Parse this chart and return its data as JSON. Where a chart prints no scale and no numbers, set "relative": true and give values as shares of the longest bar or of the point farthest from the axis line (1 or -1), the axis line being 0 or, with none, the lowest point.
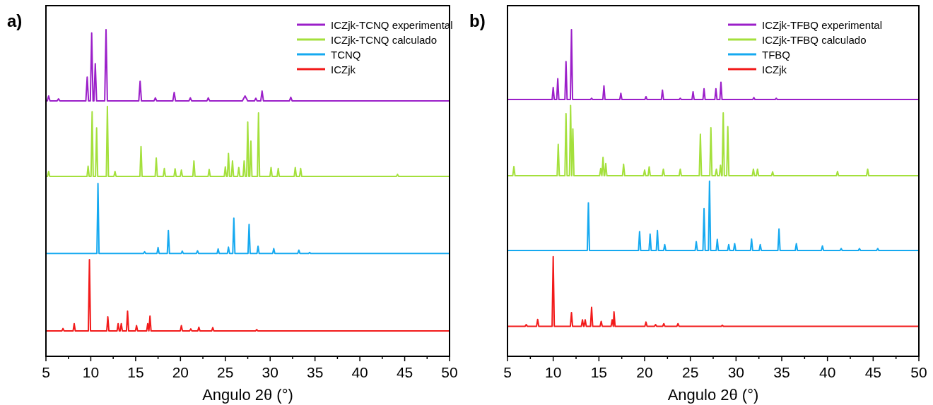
{
  "chart_data": [
    {
      "type": "line",
      "title": "a)",
      "xlabel": "Angulo 2θ (°)",
      "relative": true,
      "tick_labels": "x",
      "legend": "top right",
      "xlim": [
        5,
        50
      ],
      "xticks": [
        5,
        {
          "value": 7.5,
          "label": null
        },
        10,
        {
          "value": 12.5,
          "label": null
        },
        15,
        {
          "value": 17.5,
          "label": null
        },
        20,
        {
          "value": 22.5,
          "label": null
        },
        25,
        {
          "value": 27.5,
          "label": null
        },
        30,
        {
          "value": 32.5,
          "label": null
        },
        35,
        {
          "value": 37.5,
          "label": null
        },
        40,
        {
          "value": 42.5,
          "label": null
        },
        45,
        {
          "value": 47.5,
          "label": null
        },
        50
      ],
      "series": [
        {
          "name": "ICZjk-TCNQ experimental",
          "color": "#9b1fc9",
          "x": [
            5,
            5.15,
            5.3,
            5.45,
            6.25,
            6.4,
            6.55,
            9.45,
            9.6,
            9.75,
            9.95,
            10.1,
            10.25,
            10.35,
            10.5,
            10.65,
            11.55,
            11.7,
            11.85,
            15.35,
            15.5,
            15.65,
            17.05,
            17.2,
            17.35,
            19.15,
            19.3,
            19.45,
            20.95,
            21.1,
            21.25,
            22.95,
            23.1,
            23.25,
            26.9,
            27.2,
            27.5,
            28.25,
            28.4,
            28.55,
            28.95,
            29.1,
            29.25,
            32.15,
            32.3,
            32.45,
            50
          ],
          "values": [
            0.782,
            0.782,
            0.797,
            0.782,
            0.782,
            0.788,
            0.782,
            0.782,
            0.855,
            0.782,
            0.782,
            0.99,
            0.782,
            0.782,
            0.896,
            0.782,
            0.782,
            1,
            0.782,
            0.782,
            0.842,
            0.782,
            0.782,
            0.791,
            0.782,
            0.782,
            0.808,
            0.782,
            0.782,
            0.791,
            0.782,
            0.782,
            0.791,
            0.782,
            0.782,
            0.797,
            0.782,
            0.782,
            0.79,
            0.782,
            0.782,
            0.812,
            0.782,
            0.782,
            0.793,
            0.782,
            0.782
          ]
        },
        {
          "name": "ICZjk-TCNQ calculado",
          "color": "#a4e03c",
          "x": [
            5,
            5.18,
            5.3,
            5.42,
            9.58,
            9.7,
            9.82,
            10.03,
            10.15,
            10.27,
            10.53,
            10.65,
            10.77,
            11.73,
            11.85,
            11.97,
            12.58,
            12.7,
            12.82,
            15.48,
            15.6,
            15.72,
            17.18,
            17.3,
            17.42,
            18.08,
            18.2,
            18.32,
            19.28,
            19.4,
            19.52,
            19.98,
            20.1,
            20.22,
            21.38,
            21.5,
            21.62,
            23.08,
            23.2,
            23.32,
            24.88,
            25,
            25.12,
            25.23,
            25.35,
            25.47,
            25.68,
            25.8,
            25.92,
            26.38,
            26.5,
            26.62,
            26.98,
            27.1,
            27.22,
            27.38,
            27.5,
            27.62,
            27.73,
            27.85,
            27.97,
            28.58,
            28.7,
            28.82,
            29.98,
            30.1,
            30.22,
            30.78,
            30.9,
            31.02,
            32.68,
            32.8,
            32.92,
            33.28,
            33.4,
            33.52,
            44.08,
            44.2,
            44.32,
            50
          ],
          "values": [
            0.551,
            0.551,
            0.566,
            0.551,
            0.551,
            0.582,
            0.551,
            0.551,
            0.749,
            0.551,
            0.551,
            0.699,
            0.551,
            0.551,
            0.765,
            0.551,
            0.551,
            0.566,
            0.551,
            0.551,
            0.642,
            0.551,
            0.551,
            0.607,
            0.551,
            0.551,
            0.575,
            0.551,
            0.551,
            0.574,
            0.551,
            0.551,
            0.57,
            0.551,
            0.551,
            0.598,
            0.551,
            0.551,
            0.572,
            0.551,
            0.551,
            0.58,
            0.551,
            0.551,
            0.621,
            0.551,
            0.551,
            0.598,
            0.551,
            0.551,
            0.578,
            0.551,
            0.551,
            0.598,
            0.551,
            0.551,
            0.717,
            0.551,
            0.551,
            0.659,
            0.551,
            0.551,
            0.745,
            0.551,
            0.551,
            0.578,
            0.551,
            0.551,
            0.575,
            0.551,
            0.551,
            0.578,
            0.551,
            0.551,
            0.575,
            0.551,
            0.551,
            0.557,
            0.551,
            0.551
          ]
        },
        {
          "name": "TCNQ",
          "color": "#15a9f0",
          "x": [
            5,
            10.68,
            10.8,
            10.92,
            15.88,
            16,
            16.12,
            17.38,
            17.5,
            17.62,
            18.53,
            18.65,
            18.77,
            20.08,
            20.2,
            20.32,
            21.78,
            21.9,
            22.02,
            24.08,
            24.2,
            24.32,
            25.23,
            25.35,
            25.47,
            25.83,
            25.95,
            26.07,
            27.53,
            27.65,
            27.77,
            28.53,
            28.65,
            28.77,
            30.28,
            30.4,
            30.52,
            33.08,
            33.2,
            33.32,
            34.28,
            34.4,
            34.52,
            50
          ],
          "values": [
            0.315,
            0.315,
            0.529,
            0.315,
            0.315,
            0.32,
            0.315,
            0.315,
            0.333,
            0.315,
            0.315,
            0.385,
            0.315,
            0.315,
            0.322,
            0.315,
            0.315,
            0.323,
            0.315,
            0.315,
            0.329,
            0.315,
            0.315,
            0.334,
            0.315,
            0.315,
            0.423,
            0.315,
            0.315,
            0.404,
            0.315,
            0.315,
            0.337,
            0.315,
            0.315,
            0.33,
            0.315,
            0.315,
            0.325,
            0.315,
            0.315,
            0.318,
            0.315,
            0.315
          ]
        },
        {
          "name": "ICZjk",
          "color": "#f21a1a",
          "x": [
            5,
            6.78,
            6.9,
            7.02,
            8.03,
            8.15,
            8.27,
            9.73,
            9.85,
            9.97,
            11.78,
            11.9,
            12.02,
            12.93,
            13.05,
            13.17,
            13.28,
            13.4,
            13.52,
            13.98,
            14.1,
            14.22,
            14.98,
            15.1,
            15.22,
            16.23,
            16.35,
            16.47,
            16.48,
            16.6,
            16.72,
            19.98,
            20.1,
            20.22,
            21.03,
            21.15,
            21.27,
            21.93,
            22.05,
            22.17,
            23.48,
            23.6,
            23.72,
            28.38,
            28.5,
            28.62,
            50
          ],
          "values": [
            0.078,
            0.078,
            0.085,
            0.078,
            0.078,
            0.1,
            0.078,
            0.078,
            0.296,
            0.078,
            0.078,
            0.121,
            0.078,
            0.078,
            0.1,
            0.078,
            0.078,
            0.1,
            0.078,
            0.078,
            0.138,
            0.078,
            0.078,
            0.094,
            0.078,
            0.078,
            0.1,
            0.078,
            0.078,
            0.123,
            0.078,
            0.078,
            0.094,
            0.078,
            0.078,
            0.084,
            0.078,
            0.078,
            0.089,
            0.078,
            0.078,
            0.088,
            0.078,
            0.078,
            0.082,
            0.078,
            0.078
          ]
        }
      ]
    },
    {
      "type": "line",
      "title": "b)",
      "xlabel": "Angulo 2θ (°)",
      "relative": true,
      "tick_labels": "x",
      "legend": "top right",
      "xlim": [
        5,
        50
      ],
      "xticks": [
        5,
        {
          "value": 7.5,
          "label": null
        },
        10,
        {
          "value": 12.5,
          "label": null
        },
        15,
        {
          "value": 17.5,
          "label": null
        },
        20,
        {
          "value": 22.5,
          "label": null
        },
        25,
        {
          "value": 27.5,
          "label": null
        },
        30,
        {
          "value": 32.5,
          "label": null
        },
        35,
        {
          "value": 37.5,
          "label": null
        },
        40,
        {
          "value": 42.5,
          "label": null
        },
        45,
        {
          "value": 47.5,
          "label": null
        },
        50
      ],
      "series": [
        {
          "name": "ICZjk-TFBQ experimental",
          "color": "#9b1fc9",
          "x": [
            5,
            9.88,
            10,
            10.12,
            10.38,
            10.5,
            10.62,
            11.28,
            11.4,
            11.52,
            11.88,
            12,
            12.12,
            14.08,
            14.2,
            14.32,
            15.43,
            15.55,
            15.67,
            17.28,
            17.4,
            17.52,
            20.03,
            20.15,
            20.27,
            21.83,
            21.95,
            22.07,
            23.78,
            23.9,
            24.02,
            25.18,
            25.3,
            25.42,
            26.38,
            26.5,
            26.62,
            27.68,
            27.8,
            27.92,
            28.23,
            28.35,
            28.47,
            31.83,
            31.95,
            32.07,
            34.28,
            34.4,
            34.52,
            50
          ],
          "values": [
            0.786,
            0.786,
            0.823,
            0.786,
            0.786,
            0.85,
            0.786,
            0.786,
            0.902,
            0.786,
            0.786,
            1,
            0.786,
            0.786,
            0.79,
            0.786,
            0.786,
            0.828,
            0.786,
            0.786,
            0.805,
            0.786,
            0.786,
            0.795,
            0.786,
            0.786,
            0.815,
            0.786,
            0.786,
            0.79,
            0.786,
            0.786,
            0.81,
            0.786,
            0.786,
            0.819,
            0.786,
            0.786,
            0.819,
            0.786,
            0.786,
            0.839,
            0.786,
            0.786,
            0.792,
            0.786,
            0.786,
            0.79,
            0.786,
            0.786
          ]
        },
        {
          "name": "ICZjk-TFBQ calculado",
          "color": "#a4e03c",
          "x": [
            5,
            5.58,
            5.7,
            5.82,
            10.43,
            10.55,
            10.67,
            11.28,
            11.4,
            11.52,
            11.78,
            11.9,
            12.02,
            12.03,
            12.15,
            12.27,
            15.08,
            15.2,
            15.32,
            15.33,
            15.45,
            15.57,
            15.63,
            15.75,
            15.87,
            17.58,
            17.7,
            17.82,
            19.88,
            20,
            20.12,
            20.38,
            20.5,
            20.62,
            21.93,
            22.05,
            22.17,
            23.78,
            23.9,
            24.02,
            25.98,
            26.1,
            26.22,
            27.13,
            27.25,
            27.37,
            27.73,
            27.85,
            27.97,
            28.18,
            28.3,
            28.42,
            28.48,
            28.6,
            28.72,
            28.98,
            29.1,
            29.22,
            31.78,
            31.9,
            32.02,
            32.23,
            32.35,
            32.47,
            33.88,
            34,
            34.12,
            40.98,
            41.1,
            41.22,
            44.28,
            44.4,
            44.52,
            50
          ],
          "values": [
            0.553,
            0.553,
            0.581,
            0.553,
            0.553,
            0.649,
            0.553,
            0.553,
            0.743,
            0.553,
            0.553,
            0.768,
            0.553,
            0.553,
            0.696,
            0.553,
            0.553,
            0.575,
            0.553,
            0.553,
            0.609,
            0.553,
            0.553,
            0.59,
            0.553,
            0.553,
            0.588,
            0.553,
            0.553,
            0.57,
            0.553,
            0.553,
            0.58,
            0.553,
            0.553,
            0.573,
            0.553,
            0.553,
            0.573,
            0.553,
            0.553,
            0.68,
            0.553,
            0.553,
            0.7,
            0.553,
            0.553,
            0.573,
            0.553,
            0.553,
            0.585,
            0.553,
            0.553,
            0.745,
            0.553,
            0.553,
            0.703,
            0.553,
            0.553,
            0.573,
            0.553,
            0.553,
            0.573,
            0.553,
            0.553,
            0.565,
            0.553,
            0.553,
            0.566,
            0.553,
            0.553,
            0.573,
            0.553,
            0.553
          ]
        },
        {
          "name": "TFBQ",
          "color": "#15a9f0",
          "x": [
            5,
            13.73,
            13.85,
            13.97,
            19.33,
            19.45,
            19.57,
            20.48,
            20.6,
            20.72,
            21.28,
            21.4,
            21.52,
            22.08,
            22.2,
            22.32,
            25.53,
            25.65,
            25.77,
            26.38,
            26.5,
            26.62,
            26.98,
            27.1,
            27.22,
            27.83,
            27.95,
            28.07,
            29.08,
            29.2,
            29.32,
            29.73,
            29.85,
            29.97,
            31.58,
            31.7,
            31.82,
            32.53,
            32.65,
            32.77,
            34.58,
            34.7,
            34.82,
            36.48,
            36.6,
            36.72,
            39.33,
            39.45,
            39.57,
            41.38,
            41.5,
            41.62,
            43.38,
            43.5,
            43.62,
            45.38,
            45.5,
            45.62,
            50
          ],
          "values": [
            0.324,
            0.324,
            0.47,
            0.324,
            0.324,
            0.382,
            0.324,
            0.324,
            0.374,
            0.324,
            0.324,
            0.385,
            0.324,
            0.324,
            0.342,
            0.324,
            0.324,
            0.351,
            0.324,
            0.324,
            0.452,
            0.324,
            0.324,
            0.536,
            0.324,
            0.324,
            0.358,
            0.324,
            0.324,
            0.342,
            0.324,
            0.324,
            0.345,
            0.324,
            0.324,
            0.359,
            0.324,
            0.324,
            0.342,
            0.324,
            0.324,
            0.39,
            0.324,
            0.324,
            0.345,
            0.324,
            0.324,
            0.338,
            0.324,
            0.324,
            0.33,
            0.324,
            0.324,
            0.33,
            0.324,
            0.324,
            0.33,
            0.324,
            0.324
          ]
        },
        {
          "name": "ICZjk",
          "color": "#f21a1a",
          "x": [
            5,
            6.93,
            7.05,
            7.17,
            8.18,
            8.3,
            8.42,
            9.88,
            10,
            10.12,
            11.88,
            12,
            12.12,
            13.08,
            13.2,
            13.32,
            13.38,
            13.5,
            13.62,
            14.08,
            14.2,
            14.32,
            15.13,
            15.25,
            15.37,
            16.33,
            16.45,
            16.57,
            16.58,
            16.65,
            16.77,
            20.03,
            20.15,
            20.27,
            21.08,
            21.2,
            21.32,
            21.98,
            22.1,
            22.22,
            23.53,
            23.65,
            23.77,
            28.38,
            28.5,
            28.62,
            50
          ],
          "values": [
            0.092,
            0.092,
            0.097,
            0.092,
            0.092,
            0.113,
            0.092,
            0.092,
            0.305,
            0.092,
            0.092,
            0.134,
            0.092,
            0.092,
            0.112,
            0.092,
            0.092,
            0.112,
            0.092,
            0.092,
            0.15,
            0.092,
            0.092,
            0.107,
            0.092,
            0.092,
            0.112,
            0.092,
            0.092,
            0.136,
            0.092,
            0.092,
            0.105,
            0.092,
            0.092,
            0.097,
            0.092,
            0.092,
            0.1,
            0.092,
            0.092,
            0.1,
            0.092,
            0.092,
            0.095,
            0.092,
            0.092
          ]
        }
      ]
    }
  ]
}
